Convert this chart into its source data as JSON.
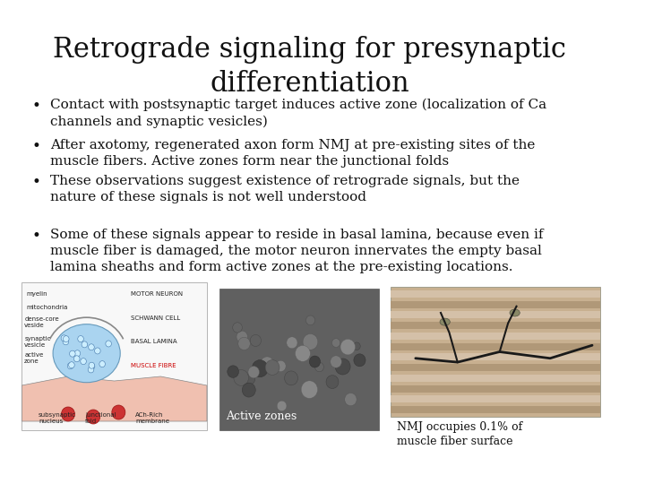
{
  "title_line1": "Retrograde signaling for presynaptic",
  "title_line2": "differentiation",
  "title_fontsize": 22,
  "title_font": "serif",
  "background_color": "#ffffff",
  "bullet_points": [
    "Contact with postsynaptic target induces active zone (localization of Ca\nchannels and synaptic vesicles)",
    "After axotomy, regenerated axon form NMJ at pre-existing sites of the\nmuscle fibers. Active zones form near the junctional folds",
    "These observations suggest existence of retrograde signals, but the\nnature of these signals is not well understood",
    "Some of these signals appear to reside in basal lamina, because even if\nmuscle fiber is damaged, the motor neuron innervates the empty basal\nlamina sheaths and form active zones at the pre-existing locations."
  ],
  "bullet_fontsize": 11,
  "caption1": "Active zones",
  "caption2": "NMJ occupies 0.1% of\nmuscle fiber surface",
  "caption_fontsize": 9
}
